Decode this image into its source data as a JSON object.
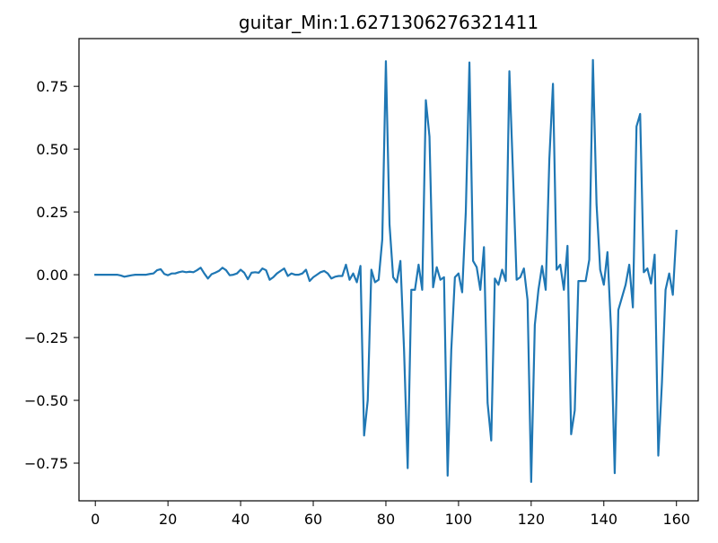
{
  "chart_data": {
    "type": "line",
    "title": "guitar_Min:1.6271306276321411",
    "xlabel": "",
    "ylabel": "",
    "xlim": [
      -4.5,
      166
    ],
    "ylim": [
      -0.9,
      0.94
    ],
    "xticks": [
      0,
      20,
      40,
      60,
      80,
      100,
      120,
      140,
      160
    ],
    "yticks": [
      -0.75,
      -0.5,
      -0.25,
      0.0,
      0.25,
      0.5,
      0.75
    ],
    "xtick_labels": [
      "0",
      "20",
      "40",
      "60",
      "80",
      "100",
      "120",
      "140",
      "160"
    ],
    "ytick_labels": [
      "−0.75",
      "−0.50",
      "−0.25",
      "0.00",
      "0.25",
      "0.50",
      "0.75"
    ],
    "grid": false,
    "legend": "none",
    "line_color": "#1f77b4",
    "series": [
      {
        "values": [
          0.0,
          0.0,
          0.0,
          0.0,
          0.0,
          0.0,
          0.0,
          -0.003,
          -0.008,
          -0.005,
          -0.002,
          0.0,
          0.0,
          0.0,
          0.0,
          0.003,
          0.005,
          0.018,
          0.022,
          0.003,
          -0.002,
          0.005,
          0.005,
          0.01,
          0.013,
          0.01,
          0.012,
          0.01,
          0.018,
          0.028,
          0.005,
          -0.015,
          0.002,
          0.008,
          0.015,
          0.028,
          0.018,
          -0.002,
          0.0,
          0.005,
          0.02,
          0.008,
          -0.018,
          0.008,
          0.01,
          0.008,
          0.025,
          0.018,
          -0.02,
          -0.01,
          0.005,
          0.015,
          0.025,
          -0.005,
          0.005,
          0.0,
          0.0,
          0.005,
          0.02,
          -0.025,
          -0.01,
          0.0,
          0.01,
          0.015,
          0.005,
          -0.015,
          -0.008,
          -0.005,
          -0.005,
          0.04,
          -0.02,
          0.005,
          -0.03,
          0.035,
          -0.64,
          -0.5,
          0.02,
          -0.03,
          -0.02,
          0.14,
          0.85,
          0.2,
          -0.01,
          -0.03,
          0.055,
          -0.3,
          -0.77,
          -0.06,
          -0.06,
          0.04,
          -0.06,
          0.695,
          0.55,
          -0.05,
          0.03,
          -0.02,
          -0.01,
          -0.8,
          -0.3,
          -0.01,
          0.005,
          -0.07,
          0.25,
          0.845,
          0.055,
          0.03,
          -0.06,
          0.11,
          -0.51,
          -0.66,
          -0.015,
          -0.04,
          0.02,
          -0.025,
          0.81,
          0.4,
          -0.02,
          -0.01,
          0.025,
          -0.1,
          -0.825,
          -0.2,
          -0.06,
          0.035,
          -0.06,
          0.46,
          0.76,
          0.02,
          0.04,
          -0.06,
          0.115,
          -0.635,
          -0.54,
          -0.025,
          -0.025,
          -0.025,
          0.06,
          0.855,
          0.28,
          0.02,
          -0.04,
          0.09,
          -0.22,
          -0.79,
          -0.14,
          -0.09,
          -0.04,
          0.04,
          -0.13,
          0.59,
          0.64,
          0.01,
          0.025,
          -0.035,
          0.08,
          -0.72,
          -0.43,
          -0.06,
          0.005,
          -0.08,
          0.175
        ]
      }
    ]
  }
}
